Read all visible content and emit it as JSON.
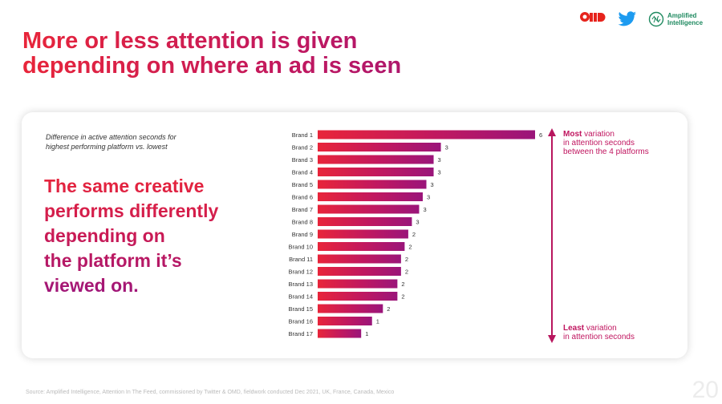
{
  "header": {
    "title_line1": "More or less attention is given",
    "title_line2": "depending on where an ad is seen",
    "logos": {
      "omd": "OMD",
      "twitter_icon": "twitter-bird-icon",
      "amplified_line1": "Amplified",
      "amplified_line2": "Intelligence"
    }
  },
  "card": {
    "subtitle_line1": "Difference in active attention seconds for",
    "subtitle_line2": "highest performing platform vs. lowest",
    "headline_lines": [
      "The same creative",
      "performs differently",
      "depending on",
      "the platform it’s",
      "viewed on."
    ],
    "most_bold": "Most",
    "most_rest_line1": " variation",
    "most_line2": "in attention seconds",
    "most_line3": "between the 4 platforms",
    "least_bold": "Least",
    "least_rest_line1": " variation",
    "least_line2": "in attention seconds"
  },
  "chart_data": {
    "type": "bar",
    "orientation": "horizontal",
    "categories": [
      "Brand 1",
      "Brand 2",
      "Brand 3",
      "Brand 4",
      "Brand 5",
      "Brand 6",
      "Brand 7",
      "Brand 8",
      "Brand 9",
      "Brand 10",
      "Brand 11",
      "Brand 12",
      "Brand 13",
      "Brand 14",
      "Brand 15",
      "Brand 16",
      "Brand 17"
    ],
    "values": [
      6.0,
      3.4,
      3.2,
      3.2,
      3.0,
      2.9,
      2.8,
      2.6,
      2.5,
      2.4,
      2.3,
      2.3,
      2.2,
      2.2,
      1.8,
      1.5,
      1.2
    ],
    "data_labels": [
      "6",
      "3",
      "3",
      "3",
      "3",
      "3",
      "3",
      "3",
      "2",
      "2",
      "2",
      "2",
      "2",
      "2",
      "2",
      "1",
      "1"
    ],
    "xlim": [
      0,
      6
    ],
    "gradient_colors": [
      "#e8253a",
      "#c01860",
      "#9a157a"
    ],
    "arrow_color": "#b8165e"
  },
  "footer": {
    "source": "Source: Amplified Intelligence, Attention In The Feed, commissioned by Twitter & OMD, fieldwork conducted Dec 2021, UK, France, Canada, Mexico",
    "page_number": "20"
  }
}
